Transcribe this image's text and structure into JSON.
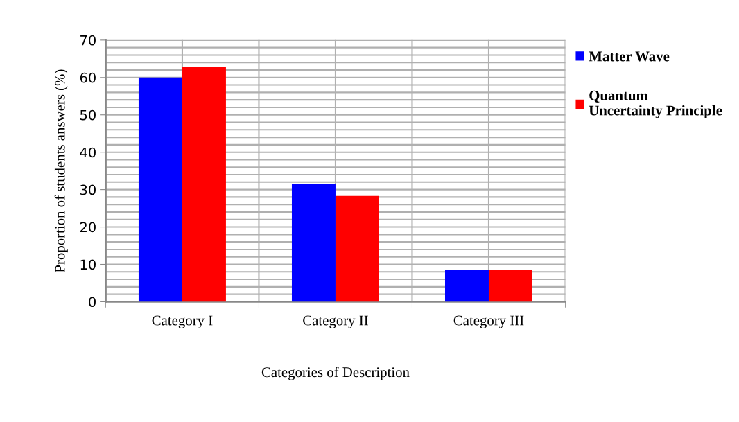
{
  "chart_data": {
    "type": "bar",
    "xlabel": "Categories of Description",
    "ylabel": "Proportion of students answers (%)",
    "categories": [
      "Category I",
      "Category II",
      "Category III"
    ],
    "series": [
      {
        "name": "Matter Wave",
        "color": "#0000ff",
        "values": [
          60,
          31.4,
          8.5
        ]
      },
      {
        "name": "Quantum\nUncertainty Principle",
        "color": "#ff0000",
        "values": [
          62.8,
          28.3,
          8.5
        ]
      }
    ],
    "ylim": [
      0,
      70
    ],
    "yticks": [
      0,
      10,
      20,
      30,
      40,
      50,
      60,
      70
    ],
    "grid": true,
    "legend": "top right"
  }
}
